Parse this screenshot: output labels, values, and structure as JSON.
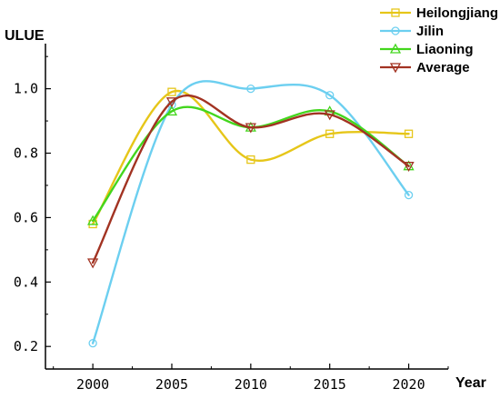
{
  "chart_data": {
    "type": "line",
    "ylabel": "ULUE",
    "xlabel": "Year",
    "x": [
      2000,
      2005,
      2010,
      2015,
      2020
    ],
    "x_ticks": [
      "2000",
      "2005",
      "2010",
      "2015",
      "2020"
    ],
    "y_ticks": [
      "0.2",
      "0.4",
      "0.6",
      "0.8",
      "1.0"
    ],
    "xlim": [
      1997,
      2022.5
    ],
    "ylim": [
      0.13,
      1.14
    ],
    "grid": false,
    "legend_position": "top-right",
    "series": [
      {
        "name": "Heilongjiang",
        "color": "#e6c619",
        "marker": "square",
        "values": [
          0.58,
          0.99,
          0.78,
          0.86,
          0.86
        ]
      },
      {
        "name": "Jilin",
        "color": "#6ccff0",
        "marker": "circle",
        "values": [
          0.21,
          0.95,
          1.0,
          0.98,
          0.67
        ]
      },
      {
        "name": "Liaoning",
        "color": "#43d61d",
        "marker": "triangle-up",
        "values": [
          0.59,
          0.93,
          0.88,
          0.93,
          0.76
        ]
      },
      {
        "name": "Average",
        "color": "#a23322",
        "marker": "triangle-down",
        "values": [
          0.46,
          0.96,
          0.88,
          0.92,
          0.76
        ]
      }
    ]
  }
}
